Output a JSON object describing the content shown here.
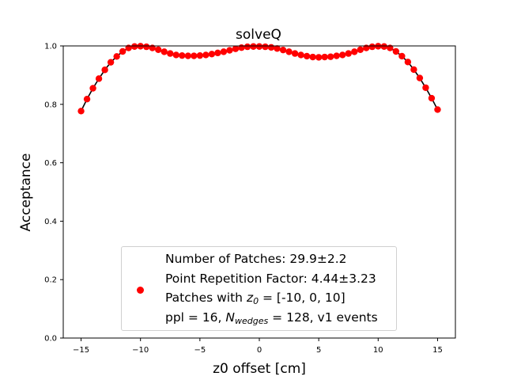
{
  "chart_data": {
    "type": "scatter",
    "title": "solveQ",
    "xlabel": "z0 offset [cm]",
    "ylabel": "Acceptance",
    "xlim": [
      -16.5,
      16.5
    ],
    "ylim": [
      0.0,
      1.0
    ],
    "xticks": [
      -15,
      -10,
      -5,
      0,
      5,
      10,
      15
    ],
    "yticks": [
      0.0,
      0.2,
      0.4,
      0.6,
      0.8,
      1.0
    ],
    "xtick_labels": [
      "−15",
      "−10",
      "−5",
      "0",
      "5",
      "10",
      "15"
    ],
    "ytick_labels": [
      "0.0",
      "0.2",
      "0.4",
      "0.6",
      "0.8",
      "1.0"
    ],
    "grid": false,
    "legend_position": "lower-center",
    "series": [
      {
        "marker_color": "#ff0000",
        "line_color": "#000000",
        "x": [
          -15.0,
          -14.5,
          -14.0,
          -13.5,
          -13.0,
          -12.5,
          -12.0,
          -11.5,
          -11.0,
          -10.5,
          -10.0,
          -9.5,
          -9.0,
          -8.5,
          -8.0,
          -7.5,
          -7.0,
          -6.5,
          -6.0,
          -5.5,
          -5.0,
          -4.5,
          -4.0,
          -3.5,
          -3.0,
          -2.5,
          -2.0,
          -1.5,
          -1.0,
          -0.5,
          0.0,
          0.5,
          1.0,
          1.5,
          2.0,
          2.5,
          3.0,
          3.5,
          4.0,
          4.5,
          5.0,
          5.5,
          6.0,
          6.5,
          7.0,
          7.5,
          8.0,
          8.5,
          9.0,
          9.5,
          10.0,
          10.5,
          11.0,
          11.5,
          12.0,
          12.5,
          13.0,
          13.5,
          14.0,
          14.5,
          15.0
        ],
        "y": [
          0.777,
          0.818,
          0.855,
          0.888,
          0.918,
          0.944,
          0.964,
          0.981,
          0.993,
          0.998,
          0.999,
          0.997,
          0.993,
          0.987,
          0.98,
          0.974,
          0.969,
          0.967,
          0.966,
          0.966,
          0.967,
          0.969,
          0.972,
          0.976,
          0.98,
          0.985,
          0.99,
          0.994,
          0.997,
          0.998,
          0.998,
          0.997,
          0.995,
          0.991,
          0.986,
          0.98,
          0.974,
          0.969,
          0.965,
          0.962,
          0.961,
          0.962,
          0.963,
          0.966,
          0.969,
          0.974,
          0.98,
          0.987,
          0.993,
          0.997,
          0.999,
          0.998,
          0.993,
          0.981,
          0.965,
          0.945,
          0.919,
          0.89,
          0.857,
          0.821,
          0.782
        ]
      }
    ],
    "legend_lines": {
      "line1": "Number of Patches: 29.9±2.2",
      "line2": "Point Repetition Factor: 4.44±3.23",
      "line3_prefix": "Patches with ",
      "line3_var": "z",
      "line3_sub": "0",
      "line3_suffix": " = [-10, 0, 10]",
      "line4_prefix": "ppl = 16, ",
      "line4_var": "N",
      "line4_sub": "wedges",
      "line4_suffix": " = 128, v1 events"
    }
  }
}
